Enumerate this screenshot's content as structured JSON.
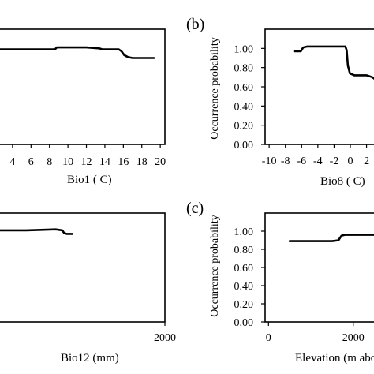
{
  "chart_data": [
    {
      "id": "tl",
      "type": "line",
      "panel_label": "",
      "xlabel": "Bio1 ( C)",
      "ylabel": "",
      "xticks": [
        "4",
        "6",
        "8",
        "10",
        "12",
        "14",
        "16",
        "18",
        "20"
      ],
      "xtick_values": [
        4,
        6,
        8,
        10,
        12,
        14,
        16,
        18,
        20
      ],
      "yticks": [],
      "xlim": [
        2.3,
        20.5
      ],
      "ylim": [
        0,
        1.2
      ],
      "x": [
        2.3,
        8.6,
        8.8,
        10,
        12,
        13.4,
        13.7,
        15.5,
        15.8,
        16.1,
        16.5,
        17,
        19.3
      ],
      "y": [
        0.99,
        0.99,
        1.01,
        1.01,
        1.01,
        1.0,
        0.99,
        0.99,
        0.97,
        0.93,
        0.91,
        0.9,
        0.9
      ]
    },
    {
      "id": "tr",
      "type": "line",
      "panel_label": "(b)",
      "xlabel": "Bio8 ( C)",
      "ylabel": "Occurrence probability",
      "xticks": [
        "-10",
        "-8",
        "-6",
        "-4",
        "-2",
        "0",
        "2"
      ],
      "xtick_values": [
        -10,
        -8,
        -6,
        -4,
        -2,
        0,
        2
      ],
      "yticks": [
        "0.00",
        "0.20",
        "0.40",
        "0.60",
        "0.80",
        "1.00"
      ],
      "ytick_values": [
        0,
        0.2,
        0.4,
        0.6,
        0.8,
        1.0
      ],
      "xlim": [
        -10.5,
        3.5
      ],
      "ylim": [
        0,
        1.2
      ],
      "x": [
        -6.9,
        -6.1,
        -5.8,
        -5.3,
        -4,
        -2,
        -0.6,
        -0.45,
        -0.3,
        -0.05,
        0.5,
        1.2,
        2.0,
        2.7,
        3.2,
        3.5
      ],
      "y": [
        0.97,
        0.97,
        1.01,
        1.02,
        1.02,
        1.02,
        1.02,
        0.98,
        0.82,
        0.74,
        0.72,
        0.72,
        0.72,
        0.7,
        0.67,
        0.64
      ]
    },
    {
      "id": "bl",
      "type": "line",
      "panel_label": "",
      "xlabel": "Bio12 (mm)",
      "ylabel": "",
      "xticks": [
        "2000"
      ],
      "xtick_values": [
        2000
      ],
      "yticks": [],
      "xlim": [
        0,
        2000
      ],
      "ylim": [
        0,
        1.2
      ],
      "x": [
        0,
        350,
        700,
        780,
        800,
        830,
        870,
        900
      ],
      "y": [
        1.01,
        1.01,
        1.02,
        1.01,
        0.98,
        0.97,
        0.97,
        0.97
      ]
    },
    {
      "id": "br",
      "type": "line",
      "panel_label": "(c)",
      "xlabel": "Elevation (m abo",
      "ylabel": "Occurrence probability",
      "xticks": [
        "0",
        "2000"
      ],
      "xtick_values": [
        0,
        2000
      ],
      "yticks": [
        "0.00",
        "0.20",
        "0.40",
        "0.60",
        "0.80",
        "1.00"
      ],
      "ytick_values": [
        0,
        0.2,
        0.4,
        0.6,
        0.8,
        1.0
      ],
      "xlim": [
        -80,
        2600
      ],
      "ylim": [
        0,
        1.2
      ],
      "x": [
        500,
        1000,
        1500,
        1650,
        1720,
        1800,
        2200,
        2600
      ],
      "y": [
        0.89,
        0.89,
        0.89,
        0.9,
        0.95,
        0.96,
        0.96,
        0.96
      ]
    }
  ]
}
